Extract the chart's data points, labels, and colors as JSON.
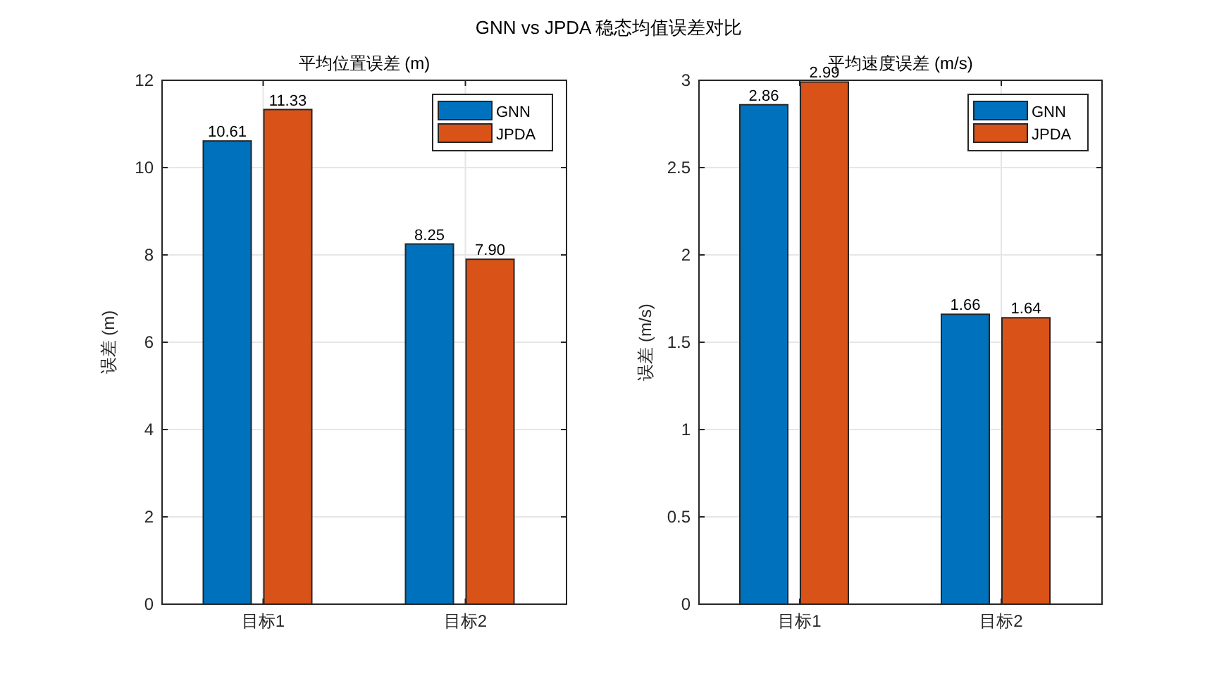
{
  "chart_data": [
    {
      "type": "bar",
      "title": "平均位置误差 (m)",
      "ylabel": "误差 (m)",
      "annotations": [
        "GNN vs JPDA 稳态均值误差对比"
      ],
      "categories": [
        "目标1",
        "目标2"
      ],
      "series": [
        {
          "name": "GNN",
          "color": "#0072bd",
          "values": [
            10.61,
            8.25
          ],
          "value_labels": [
            "10.61",
            "8.25"
          ]
        },
        {
          "name": "JPDA",
          "color": "#d95319",
          "values": [
            11.33,
            7.9
          ],
          "value_labels": [
            "11.33",
            "7.90"
          ]
        }
      ],
      "ylim": [
        0,
        12
      ],
      "yticks": [
        0,
        2,
        4,
        6,
        8,
        10,
        12
      ],
      "grid": true,
      "legend": "top right"
    },
    {
      "type": "bar",
      "title": "平均速度误差 (m/s)",
      "ylabel": "误差 (m/s)",
      "categories": [
        "目标1",
        "目标2"
      ],
      "series": [
        {
          "name": "GNN",
          "color": "#0072bd",
          "values": [
            2.86,
            1.66
          ],
          "value_labels": [
            "2.86",
            "1.66"
          ]
        },
        {
          "name": "JPDA",
          "color": "#d95319",
          "values": [
            2.99,
            1.64
          ],
          "value_labels": [
            "2.99",
            "1.64"
          ]
        }
      ],
      "ylim": [
        0,
        3
      ],
      "yticks": [
        0,
        0.5,
        1,
        1.5,
        2,
        2.5,
        3
      ],
      "grid": true,
      "legend": "top right"
    }
  ]
}
